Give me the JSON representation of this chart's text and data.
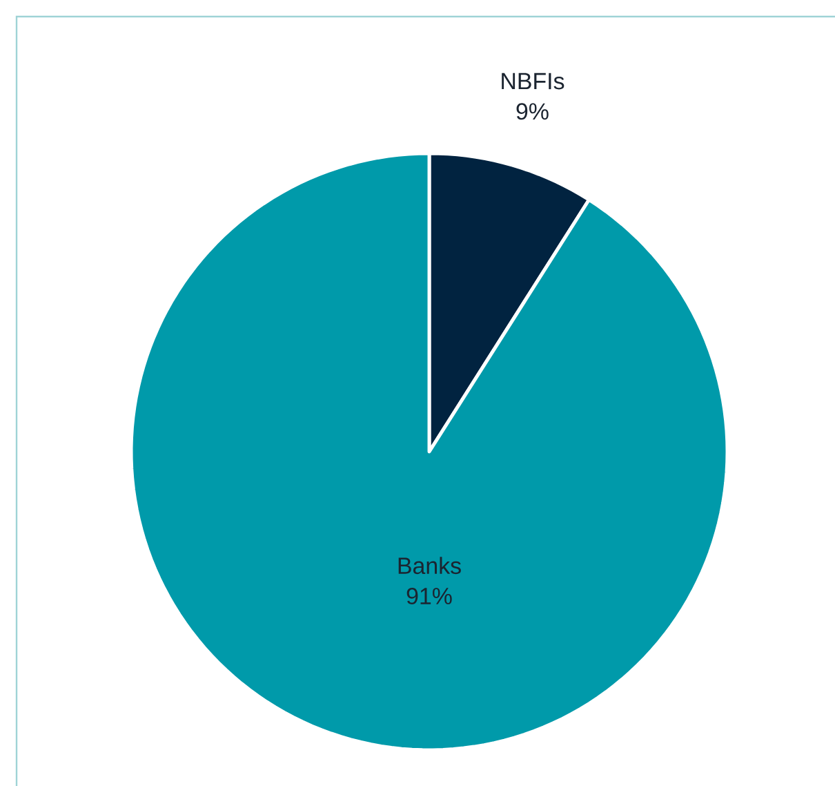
{
  "chart_data": {
    "type": "pie",
    "categories": [
      "NBFIs",
      "Banks"
    ],
    "values": [
      9,
      91
    ],
    "value_labels": [
      "9%",
      "91%"
    ],
    "colors": [
      "#012340",
      "#009aaa"
    ]
  }
}
